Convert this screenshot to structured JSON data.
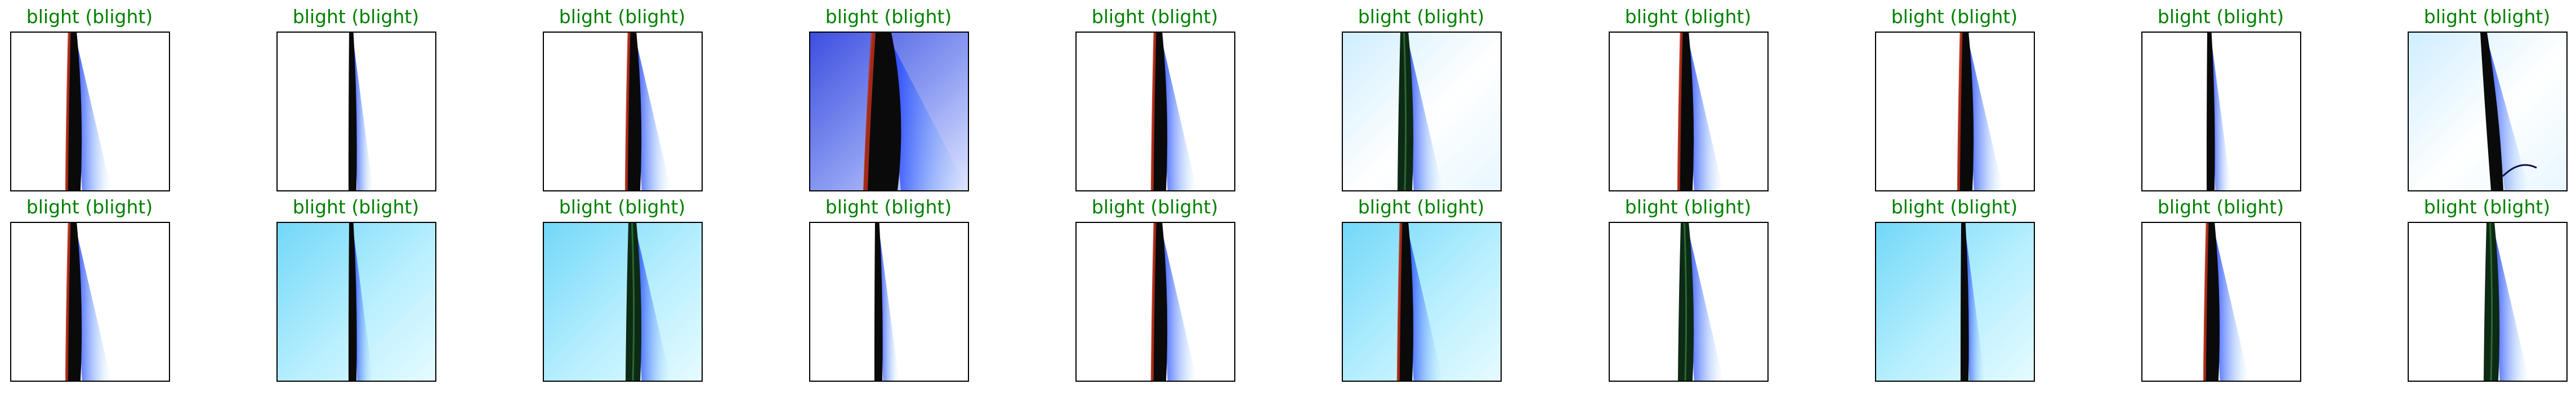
{
  "figure": {
    "title_color": "#008000",
    "panels": [
      {
        "title": "blight (blight)",
        "background": "white",
        "leaf": "red-edge"
      },
      {
        "title": "blight (blight)",
        "background": "white",
        "leaf": "thin-dark"
      },
      {
        "title": "blight (blight)",
        "background": "white",
        "leaf": "red-edge"
      },
      {
        "title": "blight (blight)",
        "background": "blue",
        "leaf": "wide-dark"
      },
      {
        "title": "blight (blight)",
        "background": "white",
        "leaf": "red-edge"
      },
      {
        "title": "blight (blight)",
        "background": "light-blue",
        "leaf": "dark-green"
      },
      {
        "title": "blight (blight)",
        "background": "white",
        "leaf": "red-edge"
      },
      {
        "title": "blight (blight)",
        "background": "white",
        "leaf": "red-edge"
      },
      {
        "title": "blight (blight)",
        "background": "white",
        "leaf": "thin-dark"
      },
      {
        "title": "blight (blight)",
        "background": "light-blue",
        "leaf": "curved-blue"
      },
      {
        "title": "blight (blight)",
        "background": "white",
        "leaf": "red-edge"
      },
      {
        "title": "blight (blight)",
        "background": "cyan",
        "leaf": "thin-dark"
      },
      {
        "title": "blight (blight)",
        "background": "cyan",
        "leaf": "dark-green"
      },
      {
        "title": "blight (blight)",
        "background": "white",
        "leaf": "thin-dark"
      },
      {
        "title": "blight (blight)",
        "background": "white",
        "leaf": "red-edge"
      },
      {
        "title": "blight (blight)",
        "background": "cyan",
        "leaf": "red-edge"
      },
      {
        "title": "blight (blight)",
        "background": "white",
        "leaf": "dark-green"
      },
      {
        "title": "blight (blight)",
        "background": "cyan",
        "leaf": "thin-dark"
      },
      {
        "title": "blight (blight)",
        "background": "white",
        "leaf": "red-edge"
      },
      {
        "title": "blight (blight)",
        "background": "white",
        "leaf": "dark-green"
      }
    ]
  }
}
